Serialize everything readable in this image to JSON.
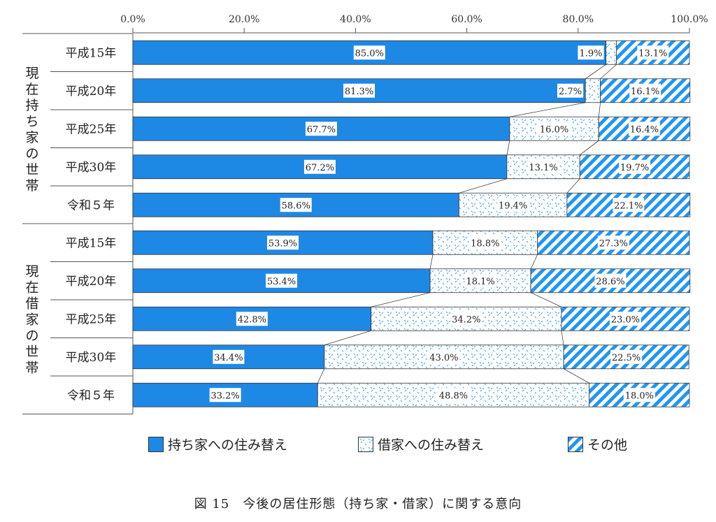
{
  "chart_data": {
    "type": "bar",
    "orientation": "horizontal",
    "stacked": true,
    "xlim": [
      0,
      100
    ],
    "x_ticks": [
      "0.0%",
      "20.0%",
      "40.0%",
      "60.0%",
      "80.0%",
      "100.0%"
    ],
    "groups": [
      {
        "label": "現在持ち家の世帯",
        "categories": [
          "平成15年",
          "平成20年",
          "平成25年",
          "平成30年",
          "令和５年"
        ],
        "series": [
          {
            "name": "持ち家への住み替え",
            "values": [
              85.0,
              81.3,
              67.7,
              67.2,
              58.6
            ]
          },
          {
            "name": "借家への住み替え",
            "values": [
              1.9,
              2.7,
              16.0,
              13.1,
              19.4
            ]
          },
          {
            "name": "その他",
            "values": [
              13.1,
              16.1,
              16.4,
              19.7,
              22.1
            ]
          }
        ],
        "labels": [
          [
            "85.0%",
            "1.9%",
            "13.1%"
          ],
          [
            "81.3%",
            "2.7%",
            "16.1%"
          ],
          [
            "67.7%",
            "16.0%",
            "16.4%"
          ],
          [
            "67.2%",
            "13.1%",
            "19.7%"
          ],
          [
            "58.6%",
            "19.4%",
            "22.1%"
          ]
        ]
      },
      {
        "label": "現在借家の世帯",
        "categories": [
          "平成15年",
          "平成20年",
          "平成25年",
          "平成30年",
          "令和５年"
        ],
        "series": [
          {
            "name": "持ち家への住み替え",
            "values": [
              53.9,
              53.4,
              42.8,
              34.4,
              33.2
            ]
          },
          {
            "name": "借家への住み替え",
            "values": [
              18.8,
              18.1,
              34.2,
              43.0,
              48.8
            ]
          },
          {
            "name": "その他",
            "values": [
              27.3,
              28.6,
              23.0,
              22.5,
              18.0
            ]
          }
        ],
        "labels": [
          [
            "53.9%",
            "18.8%",
            "27.3%"
          ],
          [
            "53.4%",
            "18.1%",
            "28.6%"
          ],
          [
            "42.8%",
            "34.2%",
            "23.0%"
          ],
          [
            "34.4%",
            "43.0%",
            "22.5%"
          ],
          [
            "33.2%",
            "48.8%",
            "18.0%"
          ]
        ]
      }
    ],
    "colors": {
      "owned": "#1e88e5",
      "rented_dots": "#3aa0e8",
      "other_stripe": "#2196f3"
    },
    "grid": false,
    "legend_position": "bottom"
  },
  "legend": {
    "owned": "持ち家への住み替え",
    "rented": "借家への住み替え",
    "other": "その他"
  },
  "caption": "図 15　今後の居住形態（持ち家・借家）に関する意向"
}
